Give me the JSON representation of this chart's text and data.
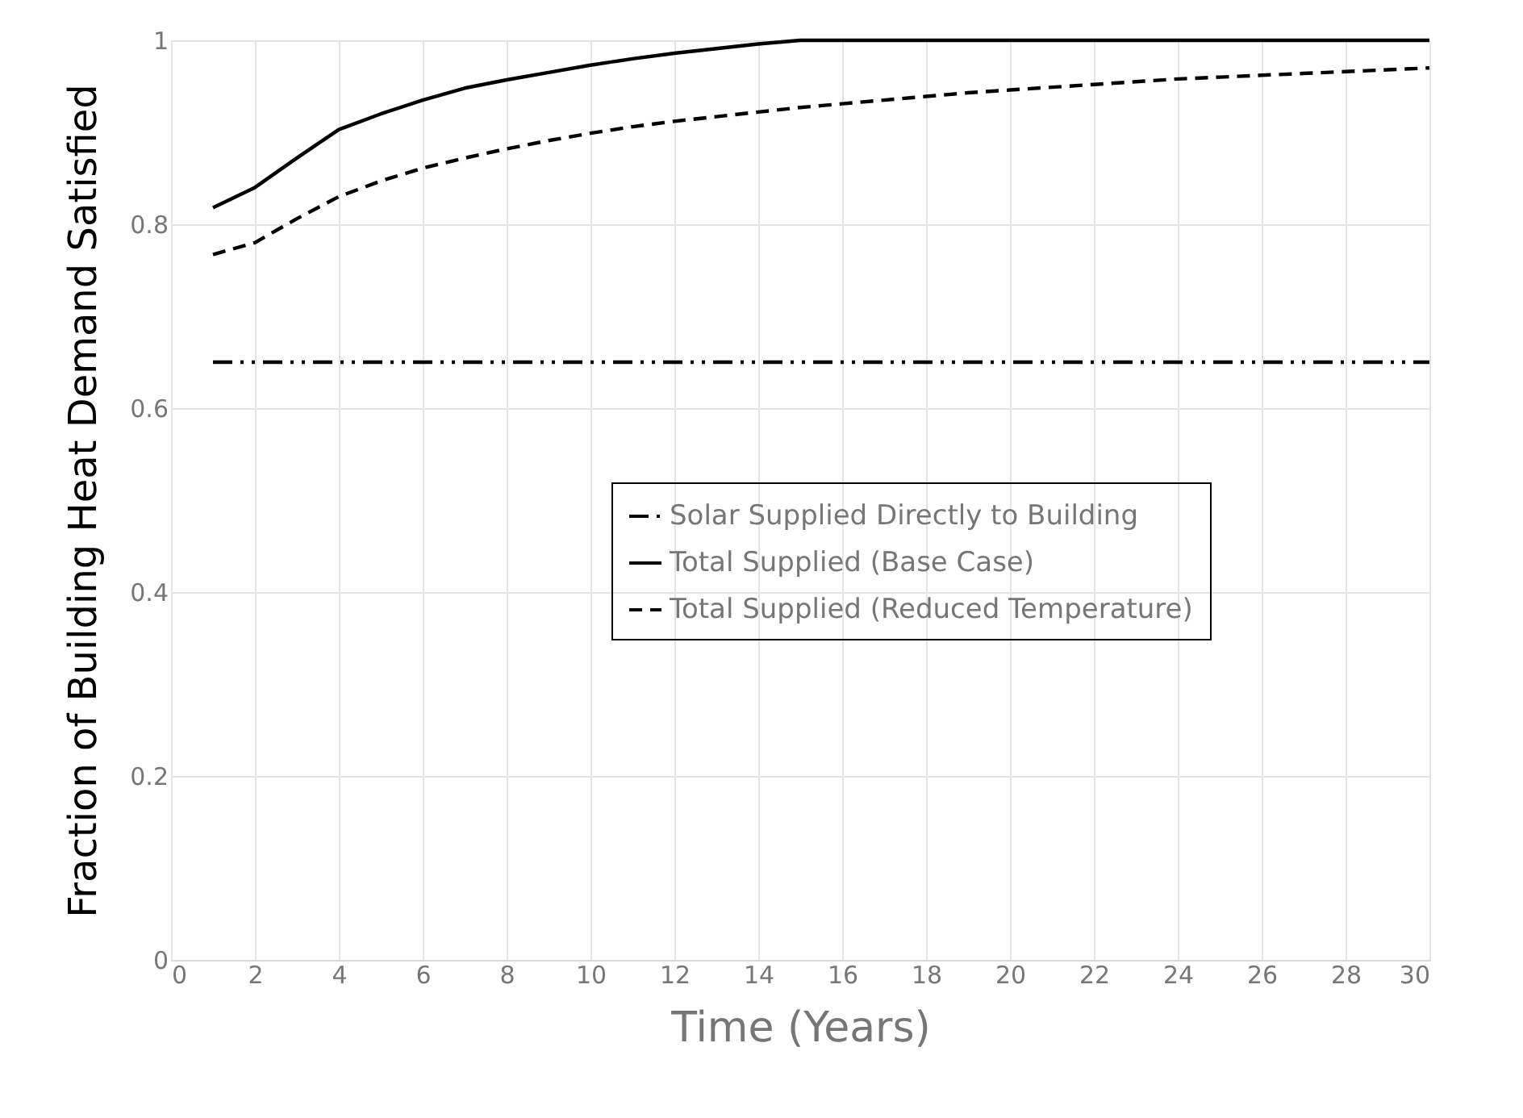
{
  "chart_data": {
    "type": "line",
    "xlabel": "Time (Years)",
    "ylabel": "Fraction of Building Heat Demand Satisfied",
    "x": [
      1,
      2,
      3,
      4,
      5,
      6,
      7,
      8,
      9,
      10,
      11,
      12,
      13,
      14,
      15,
      16,
      17,
      18,
      19,
      20,
      21,
      22,
      23,
      24,
      25,
      26,
      27,
      28,
      29,
      30
    ],
    "series": [
      {
        "name": "Solar Supplied Directly to Building",
        "color": "#000000",
        "line_style": "dashdot",
        "values": [
          0.65,
          0.65,
          0.65,
          0.65,
          0.65,
          0.65,
          0.65,
          0.65,
          0.65,
          0.65,
          0.65,
          0.65,
          0.65,
          0.65,
          0.65,
          0.65,
          0.65,
          0.65,
          0.65,
          0.65,
          0.65,
          0.65,
          0.65,
          0.65,
          0.65,
          0.65,
          0.65,
          0.65,
          0.65,
          0.65
        ]
      },
      {
        "name": "Total Supplied (Base Case)",
        "color": "#000000",
        "line_style": "solid",
        "values": [
          0.818,
          0.84,
          0.872,
          0.903,
          0.92,
          0.935,
          0.948,
          0.957,
          0.965,
          0.973,
          0.98,
          0.986,
          0.991,
          0.996,
          1.0,
          1.0,
          1.0,
          1.0,
          1.0,
          1.0,
          1.0,
          1.0,
          1.0,
          1.0,
          1.0,
          1.0,
          1.0,
          1.0,
          1.0,
          1.0
        ]
      },
      {
        "name": "Total Supplied (Reduced Temperature)",
        "color": "#000000",
        "line_style": "dashed",
        "values": [
          0.767,
          0.78,
          0.806,
          0.83,
          0.847,
          0.861,
          0.872,
          0.882,
          0.891,
          0.899,
          0.906,
          0.912,
          0.917,
          0.922,
          0.927,
          0.931,
          0.935,
          0.939,
          0.943,
          0.946,
          0.949,
          0.952,
          0.955,
          0.958,
          0.96,
          0.962,
          0.964,
          0.966,
          0.968,
          0.97
        ]
      }
    ],
    "xlim": [
      0,
      30
    ],
    "xticks": [
      0,
      2,
      4,
      6,
      8,
      10,
      12,
      14,
      16,
      18,
      20,
      22,
      24,
      26,
      28,
      30
    ],
    "ylim": [
      0,
      1
    ],
    "yticks": [
      0,
      0.2,
      0.4,
      0.6,
      0.8,
      1
    ],
    "grid": true,
    "legend": "right",
    "marker": "none"
  }
}
